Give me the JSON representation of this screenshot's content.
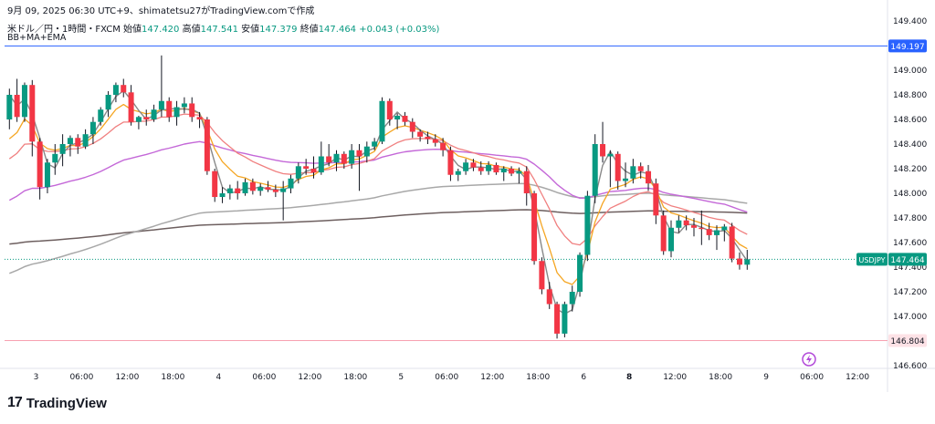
{
  "header": {
    "snapshot_line": "9月 09, 2025 06:30 UTC+9、shimatetsu27がTradingView.comで作成",
    "symbol_line": "米ドル／円・1時間・FXCM",
    "open_label": "始値",
    "open_value": "147.420",
    "high_label": "高値",
    "high_value": "147.541",
    "low_label": "安値",
    "low_value": "147.379",
    "close_label": "終値",
    "close_value": "147.464",
    "change": "+0.043 (+0.03%)",
    "indicators": "BB+MA+EMA"
  },
  "brand": {
    "logo_mark": "17",
    "logo_text": "TradingView"
  },
  "colors": {
    "up": "#089981",
    "down": "#f23645",
    "wick": "#131722",
    "bb_basis": "#888888",
    "ema_fast": "#f5a623",
    "ema_mid": "#f08080",
    "ema_slow": "#c468d8",
    "ma_long": "#a8a8a8",
    "ma_longest": "#6d5f5f",
    "blue_line": "#2962ff",
    "pink_line": "#f7a1b0",
    "last_price": "#089981"
  },
  "chart_data": {
    "type": "candlestick",
    "symbol": "USDJPY",
    "timeframe": "1時間",
    "ylim": [
      146.6,
      149.4
    ],
    "y_ticks": [
      "149.400",
      "149.200",
      "149.000",
      "148.800",
      "148.600",
      "148.400",
      "148.200",
      "148.000",
      "147.800",
      "147.600",
      "147.400",
      "147.200",
      "147.000",
      "146.800",
      "146.600"
    ],
    "x_labels": [
      {
        "text": "3",
        "idx": 3.5
      },
      {
        "text": "06:00",
        "idx": 9.5
      },
      {
        "text": "12:00",
        "idx": 15.5
      },
      {
        "text": "18:00",
        "idx": 21.5
      },
      {
        "text": "4",
        "idx": 27.5
      },
      {
        "text": "06:00",
        "idx": 33.5
      },
      {
        "text": "12:00",
        "idx": 39.5
      },
      {
        "text": "18:00",
        "idx": 45.5
      },
      {
        "text": "5",
        "idx": 51.5
      },
      {
        "text": "06:00",
        "idx": 57.5
      },
      {
        "text": "12:00",
        "idx": 63.5
      },
      {
        "text": "18:00",
        "idx": 69.5
      },
      {
        "text": "6",
        "idx": 75.5
      },
      {
        "text": "8",
        "idx": 81.5
      },
      {
        "text": "12:00",
        "idx": 87.5
      },
      {
        "text": "18:00",
        "idx": 93.5
      },
      {
        "text": "9",
        "idx": 99.5
      },
      {
        "text": "06:00",
        "idx": 105.5
      },
      {
        "text": "12:00",
        "idx": 111.5
      }
    ],
    "bold_x_labels": [
      "8"
    ],
    "horizontal_lines": [
      {
        "value": 149.197,
        "label": "149.197",
        "color": "#2962ff"
      },
      {
        "value": 146.804,
        "label": "146.804",
        "color": "#f7a1b0"
      }
    ],
    "last_price": {
      "value": 147.464,
      "label": "147.464",
      "symbol_tag": "USDJPY"
    },
    "ohlc": [
      [
        148.6,
        148.85,
        148.52,
        148.8
      ],
      [
        148.8,
        148.93,
        148.58,
        148.62
      ],
      [
        148.62,
        148.9,
        148.58,
        148.88
      ],
      [
        148.88,
        148.92,
        148.3,
        148.42
      ],
      [
        148.42,
        148.45,
        147.95,
        148.05
      ],
      [
        148.05,
        148.28,
        148.0,
        148.25
      ],
      [
        148.25,
        148.4,
        148.15,
        148.32
      ],
      [
        148.32,
        148.48,
        148.22,
        148.4
      ],
      [
        148.4,
        148.47,
        148.3,
        148.45
      ],
      [
        148.45,
        148.48,
        148.32,
        148.38
      ],
      [
        148.38,
        148.52,
        148.36,
        148.48
      ],
      [
        148.48,
        148.62,
        148.4,
        148.58
      ],
      [
        148.58,
        148.7,
        148.55,
        148.68
      ],
      [
        148.68,
        148.83,
        148.62,
        148.8
      ],
      [
        148.8,
        148.9,
        148.74,
        148.88
      ],
      [
        148.88,
        148.93,
        148.78,
        148.82
      ],
      [
        148.82,
        148.88,
        148.55,
        148.58
      ],
      [
        148.58,
        148.63,
        148.52,
        148.62
      ],
      [
        148.62,
        148.68,
        148.55,
        148.6
      ],
      [
        148.6,
        148.72,
        148.58,
        148.68
      ],
      [
        148.68,
        149.12,
        148.62,
        148.75
      ],
      [
        148.75,
        148.78,
        148.58,
        148.62
      ],
      [
        148.62,
        148.75,
        148.55,
        148.7
      ],
      [
        148.7,
        148.78,
        148.65,
        148.73
      ],
      [
        148.73,
        148.78,
        148.58,
        148.62
      ],
      [
        148.62,
        148.66,
        148.53,
        148.6
      ],
      [
        148.6,
        148.62,
        148.15,
        148.18
      ],
      [
        148.18,
        148.2,
        147.93,
        147.97
      ],
      [
        147.97,
        148.05,
        147.92,
        148.0
      ],
      [
        148.0,
        148.07,
        147.95,
        148.04
      ],
      [
        148.04,
        148.1,
        147.95,
        148.0
      ],
      [
        148.0,
        148.12,
        147.98,
        148.09
      ],
      [
        148.09,
        148.12,
        147.99,
        148.02
      ],
      [
        148.02,
        148.08,
        147.98,
        148.05
      ],
      [
        148.05,
        148.1,
        148.01,
        148.03
      ],
      [
        148.03,
        148.07,
        147.97,
        148.01
      ],
      [
        148.01,
        148.1,
        147.78,
        148.04
      ],
      [
        148.04,
        148.15,
        148.0,
        148.12
      ],
      [
        148.12,
        148.25,
        148.08,
        148.22
      ],
      [
        148.22,
        148.28,
        148.15,
        148.2
      ],
      [
        148.2,
        148.3,
        148.12,
        148.17
      ],
      [
        148.17,
        148.42,
        148.15,
        148.3
      ],
      [
        148.3,
        148.4,
        148.22,
        148.25
      ],
      [
        148.25,
        148.35,
        148.18,
        148.32
      ],
      [
        148.32,
        148.34,
        148.2,
        148.24
      ],
      [
        148.24,
        148.4,
        148.2,
        148.35
      ],
      [
        148.35,
        148.4,
        148.02,
        148.3
      ],
      [
        148.3,
        148.42,
        148.25,
        148.38
      ],
      [
        148.38,
        148.45,
        148.35,
        148.42
      ],
      [
        148.42,
        148.78,
        148.4,
        148.75
      ],
      [
        148.75,
        148.77,
        148.55,
        148.6
      ],
      [
        148.6,
        148.65,
        148.52,
        148.63
      ],
      [
        148.63,
        148.66,
        148.55,
        148.58
      ],
      [
        148.58,
        148.61,
        148.45,
        148.5
      ],
      [
        148.5,
        148.52,
        148.42,
        148.46
      ],
      [
        148.46,
        148.5,
        148.4,
        148.44
      ],
      [
        148.44,
        148.48,
        148.38,
        148.41
      ],
      [
        148.41,
        148.45,
        148.3,
        148.35
      ],
      [
        148.35,
        148.38,
        148.1,
        148.15
      ],
      [
        148.15,
        148.2,
        148.1,
        148.18
      ],
      [
        148.18,
        148.28,
        148.15,
        148.25
      ],
      [
        148.25,
        148.28,
        148.18,
        148.21
      ],
      [
        148.21,
        148.26,
        148.15,
        148.18
      ],
      [
        148.18,
        148.26,
        148.15,
        148.23
      ],
      [
        148.23,
        148.25,
        148.15,
        148.17
      ],
      [
        148.17,
        148.22,
        148.1,
        148.2
      ],
      [
        148.2,
        148.22,
        148.14,
        148.16
      ],
      [
        148.16,
        148.21,
        148.08,
        148.18
      ],
      [
        148.18,
        148.22,
        147.9,
        148.0
      ],
      [
        148.0,
        148.02,
        147.42,
        147.45
      ],
      [
        147.45,
        147.48,
        147.18,
        147.22
      ],
      [
        147.22,
        147.28,
        147.06,
        147.1
      ],
      [
        147.1,
        147.12,
        146.82,
        146.86
      ],
      [
        146.86,
        147.12,
        146.83,
        147.1
      ],
      [
        147.1,
        147.25,
        147.04,
        147.2
      ],
      [
        147.2,
        147.52,
        147.16,
        147.5
      ],
      [
        147.5,
        148.02,
        147.45,
        147.98
      ],
      [
        147.98,
        148.48,
        147.92,
        148.4
      ],
      [
        148.4,
        148.58,
        148.25,
        148.3
      ],
      [
        148.3,
        148.35,
        148.05,
        148.32
      ],
      [
        148.32,
        148.34,
        148.03,
        148.1
      ],
      [
        148.1,
        148.25,
        148.05,
        148.12
      ],
      [
        148.12,
        148.28,
        148.08,
        148.22
      ],
      [
        148.22,
        148.25,
        148.12,
        148.18
      ],
      [
        148.18,
        148.23,
        148.02,
        148.08
      ],
      [
        148.08,
        148.12,
        147.75,
        147.82
      ],
      [
        147.82,
        147.86,
        147.5,
        147.53
      ],
      [
        147.53,
        147.78,
        147.48,
        147.72
      ],
      [
        147.72,
        147.82,
        147.68,
        147.78
      ],
      [
        147.78,
        147.82,
        147.7,
        147.74
      ],
      [
        147.74,
        147.8,
        147.65,
        147.72
      ],
      [
        147.72,
        147.86,
        147.58,
        147.71
      ],
      [
        147.71,
        147.76,
        147.62,
        147.66
      ],
      [
        147.66,
        147.74,
        147.54,
        147.7
      ],
      [
        147.7,
        147.75,
        147.61,
        147.73
      ],
      [
        147.73,
        147.76,
        147.44,
        147.47
      ],
      [
        147.47,
        147.52,
        147.38,
        147.42
      ],
      [
        147.42,
        147.541,
        147.379,
        147.464
      ]
    ]
  }
}
